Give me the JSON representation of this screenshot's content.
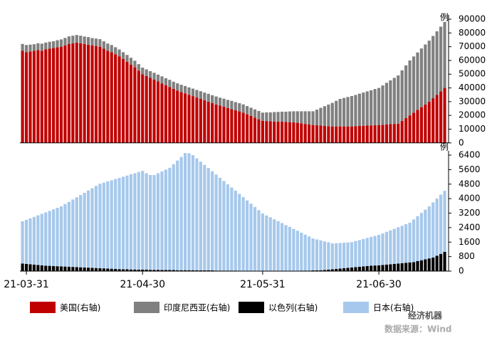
{
  "chart_data": [
    {
      "type": "bar",
      "stacked": true,
      "y_label": "例",
      "ylim": [
        0,
        90000
      ],
      "yticks": [
        0,
        10000,
        20000,
        30000,
        40000,
        50000,
        60000,
        70000,
        80000,
        90000
      ],
      "series": [
        {
          "name": "美国(右轴)",
          "color": "#c00000",
          "values": [
            67000,
            66000,
            66500,
            67000,
            67500,
            67000,
            68000,
            68500,
            69000,
            69500,
            70000,
            71000,
            72000,
            72500,
            73000,
            72500,
            72000,
            71500,
            71000,
            70500,
            70000,
            68500,
            67000,
            66000,
            64500,
            63000,
            61000,
            59000,
            57000,
            55000,
            52500,
            50000,
            48700,
            47300,
            46000,
            44700,
            43300,
            42000,
            40700,
            39300,
            38000,
            37000,
            36000,
            35000,
            34000,
            33000,
            32000,
            31000,
            30000,
            29000,
            28000,
            27100,
            26300,
            25400,
            24600,
            23700,
            22900,
            22000,
            20800,
            19600,
            18400,
            17200,
            16000,
            15900,
            15700,
            15600,
            15500,
            15400,
            15200,
            15100,
            15000,
            14600,
            14200,
            13800,
            13400,
            13000,
            12800,
            12600,
            12400,
            12200,
            12000,
            12000,
            12000,
            12000,
            12000,
            12000,
            12100,
            12300,
            12400,
            12600,
            12700,
            12900,
            13000,
            13200,
            13400,
            13600,
            13800,
            14000,
            16000,
            18000,
            20000,
            22000,
            24000,
            26000,
            28000,
            30000,
            32500,
            35000,
            37500,
            40000
          ]
        },
        {
          "name": "印度尼西亚(右轴)",
          "color": "#808080",
          "values": [
            5000,
            5200,
            5000,
            4800,
            5000,
            5200,
            5000,
            5100,
            5000,
            5200,
            5300,
            5400,
            5500,
            5500,
            5500,
            5500,
            5400,
            5500,
            5300,
            5400,
            5500,
            5400,
            5300,
            5200,
            5100,
            5000,
            5000,
            5000,
            4900,
            4800,
            4800,
            4800,
            4800,
            4900,
            5000,
            5000,
            5100,
            5100,
            5200,
            5200,
            5300,
            5300,
            5400,
            5400,
            5500,
            5500,
            5600,
            5600,
            5700,
            5700,
            5800,
            5800,
            5900,
            5900,
            6000,
            6000,
            6000,
            6000,
            6000,
            6000,
            6000,
            6000,
            6000,
            6300,
            6500,
            6800,
            7000,
            7300,
            7500,
            7800,
            8000,
            8400,
            8800,
            9200,
            9600,
            10000,
            11400,
            12900,
            14300,
            15700,
            17100,
            18600,
            20000,
            20700,
            21400,
            22100,
            22800,
            23500,
            24200,
            24900,
            25600,
            26300,
            27000,
            28600,
            30300,
            31900,
            33500,
            35100,
            36800,
            38400,
            40000,
            40900,
            41800,
            42700,
            43600,
            44400,
            45300,
            46200,
            47100,
            48000
          ]
        }
      ]
    },
    {
      "type": "bar",
      "stacked": true,
      "y_label": "例",
      "ylim": [
        0,
        6400
      ],
      "yticks": [
        0,
        800,
        1600,
        2400,
        3200,
        4000,
        4800,
        5600,
        6400
      ],
      "categories": [
        null,
        "21-03-31",
        null,
        null,
        null,
        null,
        null,
        null,
        null,
        null,
        null,
        null,
        null,
        null,
        null,
        null,
        null,
        null,
        null,
        null,
        null,
        null,
        null,
        null,
        null,
        null,
        null,
        null,
        null,
        null,
        null,
        "21-04-30",
        null,
        null,
        null,
        null,
        null,
        null,
        null,
        null,
        null,
        null,
        null,
        null,
        null,
        null,
        null,
        null,
        null,
        null,
        null,
        null,
        null,
        null,
        null,
        null,
        null,
        null,
        null,
        null,
        null,
        null,
        "21-05-31",
        null,
        null,
        null,
        null,
        null,
        null,
        null,
        null,
        null,
        null,
        null,
        null,
        null,
        null,
        null,
        null,
        null,
        null,
        null,
        null,
        null,
        null,
        null,
        null,
        null,
        null,
        null,
        null,
        null,
        "21-06-30",
        null,
        null,
        null,
        null,
        null,
        null,
        null,
        null,
        null,
        null,
        null,
        null,
        null,
        null,
        null,
        null,
        null
      ],
      "series": [
        {
          "name": "以色列(右轴)",
          "color": "#000000",
          "values": [
            420,
            400,
            380,
            360,
            340,
            320,
            300,
            290,
            280,
            270,
            260,
            250,
            240,
            230,
            220,
            210,
            200,
            190,
            180,
            170,
            160,
            150,
            140,
            130,
            120,
            110,
            100,
            100,
            90,
            90,
            80,
            80,
            80,
            70,
            70,
            70,
            60,
            60,
            60,
            60,
            50,
            50,
            50,
            50,
            50,
            40,
            40,
            40,
            40,
            40,
            30,
            30,
            30,
            30,
            30,
            30,
            20,
            20,
            20,
            20,
            20,
            20,
            20,
            20,
            20,
            20,
            20,
            20,
            20,
            20,
            20,
            20,
            30,
            30,
            30,
            40,
            40,
            50,
            60,
            80,
            100,
            120,
            140,
            160,
            180,
            200,
            220,
            240,
            260,
            280,
            300,
            310,
            320,
            340,
            360,
            380,
            400,
            420,
            440,
            460,
            480,
            500,
            550,
            600,
            650,
            700,
            750,
            850,
            950,
            1060
          ]
        },
        {
          "name": "日本(右轴)",
          "color": "#a6c8ec",
          "values": [
            2330,
            2430,
            2530,
            2630,
            2740,
            2840,
            2940,
            3030,
            3130,
            3220,
            3310,
            3450,
            3580,
            3720,
            3850,
            3990,
            4120,
            4260,
            4390,
            4530,
            4660,
            4730,
            4810,
            4880,
            4960,
            5030,
            5110,
            5170,
            5250,
            5310,
            5390,
            5450,
            5320,
            5230,
            5230,
            5330,
            5440,
            5540,
            5640,
            5840,
            6050,
            6250,
            6460,
            6450,
            6350,
            6180,
            6000,
            5820,
            5650,
            5470,
            5300,
            5120,
            4940,
            4760,
            4580,
            4410,
            4240,
            4060,
            3880,
            3700,
            3520,
            3340,
            3160,
            3050,
            2950,
            2840,
            2740,
            2630,
            2520,
            2420,
            2310,
            2210,
            2090,
            1980,
            1880,
            1760,
            1710,
            1650,
            1580,
            1510,
            1430,
            1420,
            1410,
            1410,
            1400,
            1400,
            1440,
            1470,
            1510,
            1550,
            1590,
            1630,
            1680,
            1740,
            1810,
            1870,
            1930,
            2000,
            2060,
            2130,
            2190,
            2350,
            2480,
            2610,
            2740,
            2870,
            3040,
            3150,
            3270,
            3370
          ]
        }
      ]
    }
  ],
  "footer": {
    "watermark": "经济机器",
    "source": "数据来源：Wind"
  }
}
